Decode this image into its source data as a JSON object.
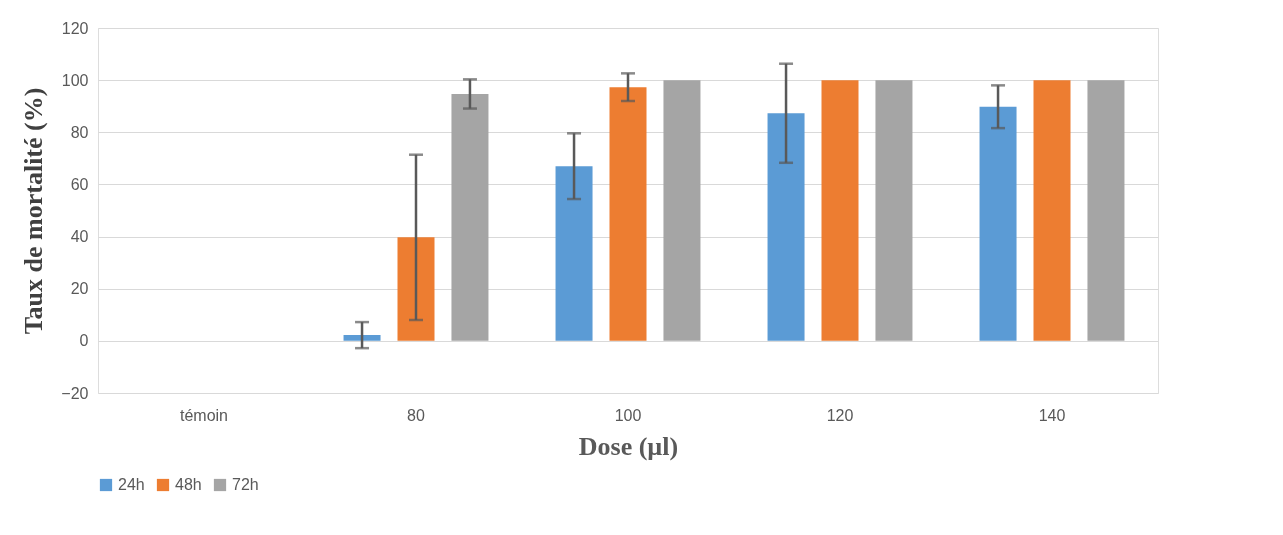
{
  "chart_data": {
    "type": "bar",
    "xlabel": "Dose (µl)",
    "ylabel": "Taux de mortalité (%)",
    "categories": [
      "témoin",
      "80",
      "100",
      "120",
      "140"
    ],
    "series": [
      {
        "name": "24h",
        "color": "#5b9bd5",
        "values": [
          0,
          2.2,
          67,
          87.3,
          89.8
        ],
        "errors": [
          null,
          5,
          12.6,
          19,
          8.2
        ]
      },
      {
        "name": "48h",
        "color": "#ed7d31",
        "values": [
          0,
          39.7,
          97.3,
          100,
          100
        ],
        "errors": [
          null,
          31.7,
          5.3,
          null,
          null
        ]
      },
      {
        "name": "72h",
        "color": "#a5a5a5",
        "values": [
          0,
          94.7,
          100,
          100,
          100
        ],
        "errors": [
          null,
          5.6,
          null,
          null,
          null
        ]
      }
    ],
    "ylim": [
      -20,
      120
    ],
    "yticks": [
      -20,
      0,
      20,
      40,
      60,
      80,
      100,
      120
    ],
    "grid": "y",
    "legend": "bottom"
  }
}
